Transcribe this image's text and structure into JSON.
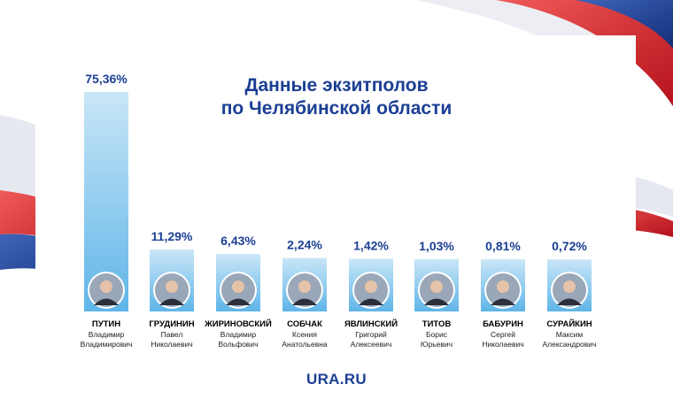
{
  "title_line1": "Данные экзитполов",
  "title_line2": "по Челябинской области",
  "logo": "URA.RU",
  "colors": {
    "title": "#1b3f93",
    "bar_top": "#c9e6f7",
    "bar_bottom": "#5fb5e8",
    "flag_red": "#d81f26",
    "flag_blue": "#1b3f93"
  },
  "candidates": [
    {
      "surname": "ПУТИН",
      "given": "Владимир",
      "patronymic": "Владимирович",
      "label": "75,36%"
    },
    {
      "surname": "ГРУДИНИН",
      "given": "Павел",
      "patronymic": "Николаевич",
      "label": "11,29%"
    },
    {
      "surname": "ЖИРИНОВСКИЙ",
      "given": "Владимир",
      "patronymic": "Вольфович",
      "label": "6,43%"
    },
    {
      "surname": "СОБЧАК",
      "given": "Ксения",
      "patronymic": "Анатольевна",
      "label": "2,24%"
    },
    {
      "surname": "ЯВЛИНСКИЙ",
      "given": "Григорий",
      "patronymic": "Алексеевич",
      "label": "1,42%"
    },
    {
      "surname": "ТИТОВ",
      "given": "Борис",
      "patronymic": "Юрьевич",
      "label": "1,03%"
    },
    {
      "surname": "БАБУРИН",
      "given": "Сергей",
      "patronymic": "Николаевич",
      "label": "0,81%"
    },
    {
      "surname": "СУРАЙКИН",
      "given": "Максим",
      "patronymic": "Александрович",
      "label": "0,72%"
    }
  ],
  "chart_data": {
    "type": "bar",
    "title": "Данные экзитполов по Челябинской области",
    "categories": [
      "ПУТИН",
      "ГРУДИНИН",
      "ЖИРИНОВСКИЙ",
      "СОБЧАК",
      "ЯВЛИНСКИЙ",
      "ТИТОВ",
      "БАБУРИН",
      "СУРАЙКИН"
    ],
    "values": [
      75.36,
      11.29,
      6.43,
      2.24,
      1.42,
      1.03,
      0.81,
      0.72
    ],
    "data_labels": [
      "75,36%",
      "11,29%",
      "6,43%",
      "2,24%",
      "1,42%",
      "1,03%",
      "0,81%",
      "0,72%"
    ],
    "xlabel": "",
    "ylabel": "",
    "grid": false
  }
}
